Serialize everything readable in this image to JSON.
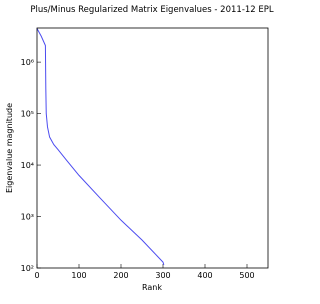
{
  "chart_data": {
    "type": "line",
    "title": "Plus/Minus Regularized Matrix Eigenvalues - 2011-12 EPL",
    "x_label": "Rank",
    "y_label": "Eigenvalue magnitude",
    "x": [
      0,
      10,
      20,
      21,
      22,
      25,
      30,
      40,
      50,
      70,
      100,
      150,
      200,
      250,
      300,
      302
    ],
    "values": [
      4500000,
      3200000,
      2100000,
      300000,
      100000,
      55000,
      35000,
      25000,
      20000,
      12500,
      6300,
      2300,
      850,
      350,
      130,
      115
    ],
    "color": "#4c4cf0",
    "xlim": [
      0,
      550
    ],
    "xticks": [
      0,
      100,
      200,
      300,
      400,
      500
    ],
    "ylim": [
      100,
      4600000
    ],
    "yscale": "log",
    "yticks": [
      {
        "value": 100,
        "label": "10²"
      },
      {
        "value": 1000,
        "label": "10³"
      },
      {
        "value": 10000,
        "label": "10⁴"
      },
      {
        "value": 100000,
        "label": "10⁵"
      },
      {
        "value": 1000000,
        "label": "10⁶"
      }
    ]
  }
}
